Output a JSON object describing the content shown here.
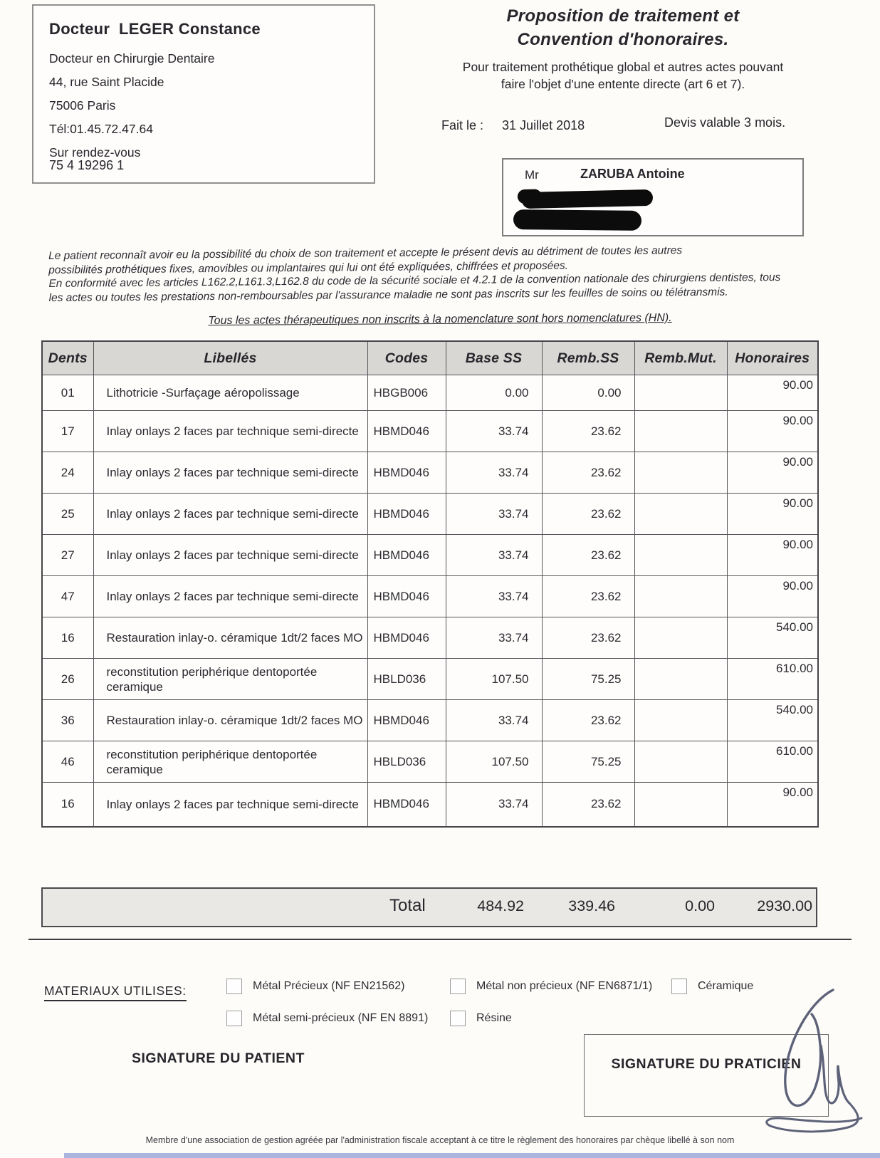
{
  "doctor": {
    "name": "Docteur  LEGER Constance",
    "lines": [
      "Docteur en Chirurgie Dentaire",
      "44, rue Saint Placide",
      "75006 Paris",
      "Tél:01.45.72.47.64",
      "Sur rendez-vous"
    ],
    "id_number": "75 4 19296 1"
  },
  "header": {
    "title_line1": "Proposition de traitement et",
    "title_line2": "Convention d'honoraires.",
    "subtitle_line1": "Pour traitement prothétique global et autres actes pouvant",
    "subtitle_line2": "faire l'objet d'une entente directe (art 6 et 7).",
    "date_label": "Fait le :",
    "date_value": "31 Juillet 2018",
    "validity": "Devis valable 3 mois."
  },
  "patient": {
    "civility": "Mr",
    "name": "ZARUBA Antoine"
  },
  "notice": {
    "lines": [
      "Le patient reconnaît avoir eu la possibilité du choix de son traitement et accepte le présent devis au détriment de toutes les autres",
      "possibilités prothétiques fixes, amovibles ou implantaires qui lui ont été expliquées, chiffrées et proposées.",
      "En conformité avec les articles L162.2,L161.3,L162.8 du code de la sécurité sociale et 4.2.1 de la convention nationale des chirurgiens dentistes, tous",
      "les actes ou toutes les prestations non-remboursables par l'assurance maladie ne sont pas inscrits sur les feuilles de soins ou télétransmis."
    ],
    "nomenclature_note": "Tous les actes thérapeutiques non inscrits à la nomenclature sont hors nomenclatures (HN)."
  },
  "table": {
    "headers": [
      "Dents",
      "Libellés",
      "Codes",
      "Base SS",
      "Remb.SS",
      "Remb.Mut.",
      "Honoraires"
    ],
    "rows": [
      {
        "dents": "01",
        "libelle": "Lithotricie -Surfaçage aéropolissage",
        "code": "HBGB006",
        "base_ss": "0.00",
        "remb_ss": "0.00",
        "remb_mut": "",
        "honoraires": "90.00"
      },
      {
        "dents": "17",
        "libelle": "Inlay onlays 2 faces par technique semi-directe",
        "code": "HBMD046",
        "base_ss": "33.74",
        "remb_ss": "23.62",
        "remb_mut": "",
        "honoraires": "90.00"
      },
      {
        "dents": "24",
        "libelle": "Inlay onlays 2 faces par technique semi-directe",
        "code": "HBMD046",
        "base_ss": "33.74",
        "remb_ss": "23.62",
        "remb_mut": "",
        "honoraires": "90.00"
      },
      {
        "dents": "25",
        "libelle": "Inlay onlays 2 faces par technique semi-directe",
        "code": "HBMD046",
        "base_ss": "33.74",
        "remb_ss": "23.62",
        "remb_mut": "",
        "honoraires": "90.00"
      },
      {
        "dents": "27",
        "libelle": "Inlay onlays 2 faces par technique semi-directe",
        "code": "HBMD046",
        "base_ss": "33.74",
        "remb_ss": "23.62",
        "remb_mut": "",
        "honoraires": "90.00"
      },
      {
        "dents": "47",
        "libelle": "Inlay onlays 2 faces par technique semi-directe",
        "code": "HBMD046",
        "base_ss": "33.74",
        "remb_ss": "23.62",
        "remb_mut": "",
        "honoraires": "90.00"
      },
      {
        "dents": "16",
        "libelle": "Restauration inlay-o. céramique 1dt/2 faces MO",
        "code": "HBMD046",
        "base_ss": "33.74",
        "remb_ss": "23.62",
        "remb_mut": "",
        "honoraires": "540.00"
      },
      {
        "dents": "26",
        "libelle": "reconstitution periphérique dentoportée ceramique",
        "code": "HBLD036",
        "base_ss": "107.50",
        "remb_ss": "75.25",
        "remb_mut": "",
        "honoraires": "610.00"
      },
      {
        "dents": "36",
        "libelle": "Restauration inlay-o. céramique 1dt/2 faces MO",
        "code": "HBMD046",
        "base_ss": "33.74",
        "remb_ss": "23.62",
        "remb_mut": "",
        "honoraires": "540.00"
      },
      {
        "dents": "46",
        "libelle": "reconstitution periphérique dentoportée ceramique",
        "code": "HBLD036",
        "base_ss": "107.50",
        "remb_ss": "75.25",
        "remb_mut": "",
        "honoraires": "610.00"
      },
      {
        "dents": "16",
        "libelle": "Inlay onlays 2 faces par technique semi-directe",
        "code": "HBMD046",
        "base_ss": "33.74",
        "remb_ss": "23.62",
        "remb_mut": "",
        "honoraires": "90.00"
      }
    ],
    "total": {
      "label": "Total",
      "base_ss": "484.92",
      "remb_ss": "339.46",
      "remb_mut": "0.00",
      "honoraires": "2930.00"
    }
  },
  "materials": {
    "label": "MATERIAUX UTILISES:",
    "items": [
      {
        "label": "Métal Précieux (NF EN21562)",
        "checked": false
      },
      {
        "label": "Métal non précieux (NF EN6871/1)",
        "checked": false
      },
      {
        "label": "Céramique",
        "checked": false
      },
      {
        "label": "Métal semi-précieux (NF EN 8891)",
        "checked": false
      },
      {
        "label": "Résine",
        "checked": false
      }
    ]
  },
  "signatures": {
    "patient_label": "SIGNATURE DU PATIENT",
    "practitioner_label": "SIGNATURE DU PRATICIEN"
  },
  "footer": {
    "text": "Membre d'une association de gestion agréée par l'administration fiscale acceptant à ce titre le règlement des honoraires par chèque libellé à son nom"
  },
  "colors": {
    "redaction": "#0c0c0c",
    "table_header_bg": "#d8d7d3",
    "total_row_bg": "#e9e8e4",
    "bottom_bar": "#aab4dc"
  }
}
